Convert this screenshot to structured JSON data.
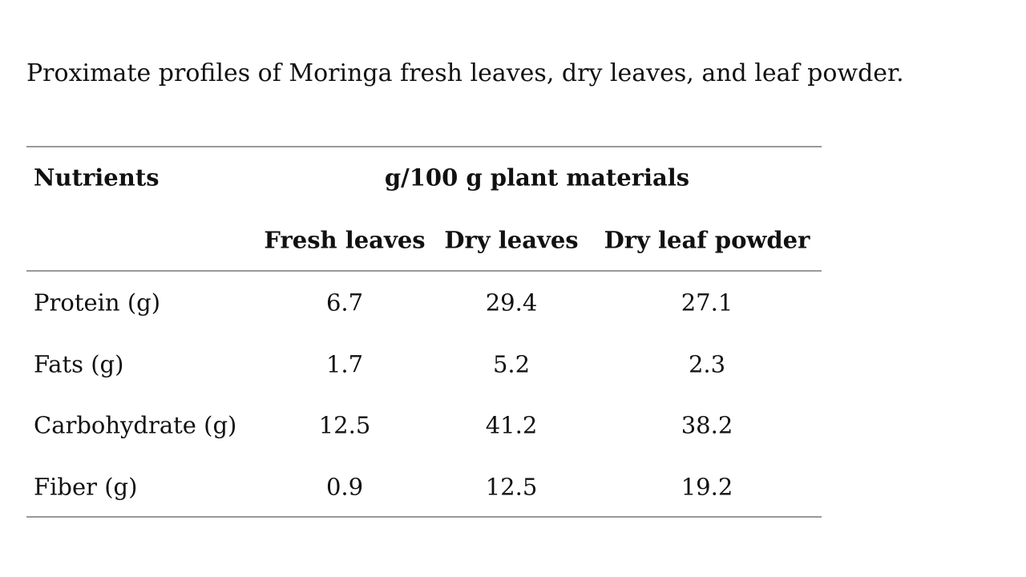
{
  "caption": "Proximate profiles of Moringa fresh leaves, dry leaves, and leaf powder.",
  "table": {
    "header": {
      "row_label": "Nutrients",
      "group": "g/100 g plant materials"
    },
    "columns": [
      "Fresh leaves",
      "Dry leaves",
      "Dry leaf powder"
    ],
    "rows": [
      {
        "label": "Protein (g)",
        "values": [
          6.7,
          29.4,
          27.1
        ]
      },
      {
        "label": "Fats (g)",
        "values": [
          1.7,
          5.2,
          2.3
        ]
      },
      {
        "label": "Carbohydrate (g)",
        "values": [
          12.5,
          41.2,
          38.2
        ]
      },
      {
        "label": "Fiber (g)",
        "values": [
          0.9,
          12.5,
          19.2
        ]
      }
    ]
  }
}
